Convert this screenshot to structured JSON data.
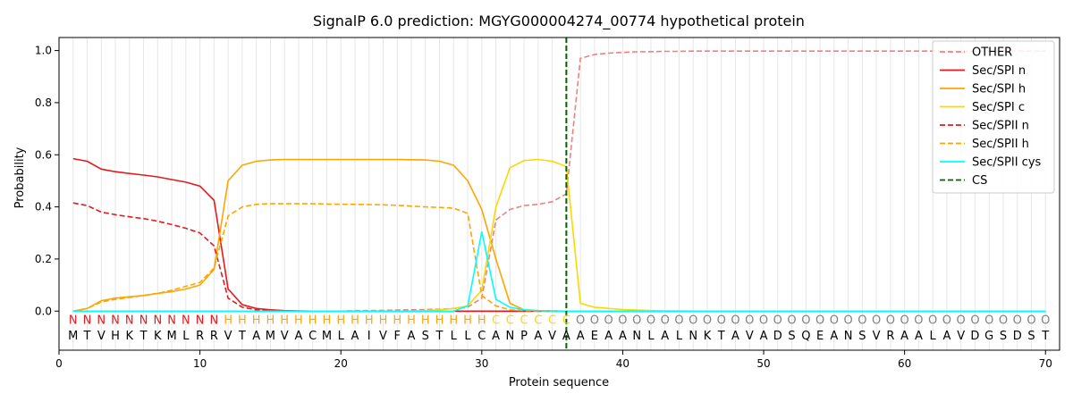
{
  "chart_data": {
    "type": "line",
    "title": "SignalP 6.0 prediction: MGYG000004274_00774 hypothetical protein",
    "xlabel": "Protein sequence",
    "ylabel": "Probability",
    "xlim": [
      0,
      71
    ],
    "ylim": [
      -0.15,
      1.05
    ],
    "x_ticks": [
      0,
      10,
      20,
      30,
      40,
      50,
      60,
      70
    ],
    "y_ticks": [
      0.0,
      0.2,
      0.4,
      0.6,
      0.8,
      1.0
    ],
    "y_tick_labels": [
      "0.0",
      "0.2",
      "0.4",
      "0.6",
      "0.8",
      "1.0"
    ],
    "legend_position": "top-right",
    "sequence": [
      "M",
      "T",
      "V",
      "H",
      "K",
      "T",
      "K",
      "M",
      "L",
      "R",
      "R",
      "V",
      "T",
      "A",
      "M",
      "V",
      "A",
      "C",
      "M",
      "L",
      "A",
      "I",
      "V",
      "F",
      "A",
      "S",
      "T",
      "L",
      "L",
      "C",
      "A",
      "N",
      "P",
      "A",
      "V",
      "A",
      "A",
      "E",
      "A",
      "A",
      "N",
      "L",
      "A",
      "L",
      "N",
      "K",
      "T",
      "A",
      "V",
      "A",
      "D",
      "S",
      "Q",
      "E",
      "A",
      "N",
      "S",
      "V",
      "R",
      "A",
      "A",
      "L",
      "A",
      "V",
      "D",
      "G",
      "S",
      "D",
      "S",
      "T"
    ],
    "labels": [
      "N",
      "N",
      "N",
      "N",
      "N",
      "N",
      "N",
      "N",
      "N",
      "N",
      "N",
      "H",
      "H",
      "H",
      "H",
      "H",
      "H",
      "H",
      "H",
      "H",
      "H",
      "H",
      "H",
      "H",
      "H",
      "H",
      "H",
      "H",
      "H",
      "H",
      "C",
      "C",
      "C",
      "C",
      "C",
      "C",
      "O",
      "O",
      "O",
      "O",
      "O",
      "O",
      "O",
      "O",
      "O",
      "O",
      "O",
      "O",
      "O",
      "O",
      "O",
      "O",
      "O",
      "O",
      "O",
      "O",
      "O",
      "O",
      "O",
      "O",
      "O",
      "O",
      "O",
      "O",
      "O",
      "O",
      "O",
      "O",
      "O",
      "O"
    ],
    "label_colors": {
      "N": "#e41a1c",
      "H": "#ffa500",
      "C": "#ffd700",
      "O": "#808080"
    },
    "cleavage_site": 36,
    "series": [
      {
        "name": "OTHER",
        "color": "#f08080",
        "dash": "dashed",
        "values": [
          0,
          0,
          0,
          0,
          0,
          0,
          0,
          0,
          0,
          0,
          0,
          0,
          0,
          0,
          0,
          0,
          0,
          0,
          0,
          0,
          0.002,
          0.002,
          0.003,
          0.004,
          0.005,
          0.006,
          0.007,
          0.01,
          0.015,
          0.05,
          0.35,
          0.39,
          0.405,
          0.41,
          0.42,
          0.45,
          0.97,
          0.985,
          0.99,
          0.993,
          0.995,
          0.996,
          0.997,
          0.997,
          0.998,
          0.998,
          0.998,
          0.998,
          0.998,
          0.998,
          0.998,
          0.998,
          0.998,
          0.998,
          0.998,
          0.998,
          0.998,
          0.998,
          0.998,
          0.998,
          0.998,
          0.998,
          0.998,
          0.998,
          0.998,
          0.998,
          0.998,
          0.998,
          0.998,
          0.998
        ]
      },
      {
        "name": "Sec/SPI n",
        "color": "#e41a1c",
        "dash": "solid",
        "values": [
          0.585,
          0.575,
          0.545,
          0.535,
          0.528,
          0.522,
          0.515,
          0.505,
          0.495,
          0.48,
          0.425,
          0.085,
          0.025,
          0.01,
          0.005,
          0.002,
          0.001,
          0,
          0,
          0,
          0,
          0,
          0,
          0,
          0,
          0,
          0,
          0,
          0,
          0,
          0,
          0,
          0,
          0,
          0,
          0,
          0,
          0,
          0,
          0,
          0,
          0,
          0,
          0,
          0,
          0,
          0,
          0,
          0,
          0,
          0,
          0,
          0,
          0,
          0,
          0,
          0,
          0,
          0,
          0,
          0,
          0,
          0,
          0,
          0,
          0,
          0,
          0,
          0,
          0
        ]
      },
      {
        "name": "Sec/SPI h",
        "color": "#ffa500",
        "dash": "solid",
        "values": [
          0,
          0.01,
          0.04,
          0.05,
          0.055,
          0.06,
          0.068,
          0.075,
          0.085,
          0.1,
          0.16,
          0.5,
          0.56,
          0.575,
          0.58,
          0.582,
          0.582,
          0.582,
          0.582,
          0.582,
          0.582,
          0.582,
          0.582,
          0.582,
          0.581,
          0.58,
          0.575,
          0.56,
          0.5,
          0.39,
          0.2,
          0.03,
          0.005,
          0.002,
          0.001,
          0,
          0,
          0,
          0,
          0,
          0,
          0,
          0,
          0,
          0,
          0,
          0,
          0,
          0,
          0,
          0,
          0,
          0,
          0,
          0,
          0,
          0,
          0,
          0,
          0,
          0,
          0,
          0,
          0,
          0,
          0,
          0,
          0,
          0,
          0
        ]
      },
      {
        "name": "Sec/SPI c",
        "color": "#ffd700",
        "dash": "solid",
        "values": [
          0,
          0,
          0,
          0,
          0,
          0,
          0,
          0,
          0,
          0,
          0,
          0,
          0,
          0,
          0,
          0,
          0,
          0,
          0,
          0,
          0,
          0,
          0,
          0,
          0,
          0.002,
          0.005,
          0.01,
          0.02,
          0.08,
          0.4,
          0.55,
          0.578,
          0.582,
          0.575,
          0.555,
          0.03,
          0.015,
          0.01,
          0.006,
          0.004,
          0.002,
          0.001,
          0.001,
          0,
          0,
          0,
          0,
          0,
          0,
          0,
          0,
          0,
          0,
          0,
          0,
          0,
          0,
          0,
          0,
          0,
          0,
          0,
          0,
          0,
          0,
          0,
          0,
          0,
          0
        ]
      },
      {
        "name": "Sec/SPII n",
        "color": "#e41a1c",
        "dash": "dashed",
        "values": [
          0.415,
          0.405,
          0.38,
          0.37,
          0.362,
          0.355,
          0.345,
          0.332,
          0.318,
          0.3,
          0.25,
          0.05,
          0.015,
          0.005,
          0.002,
          0.001,
          0,
          0,
          0,
          0,
          0,
          0,
          0,
          0,
          0,
          0,
          0,
          0,
          0,
          0,
          0,
          0,
          0,
          0,
          0,
          0,
          0,
          0,
          0,
          0,
          0,
          0,
          0,
          0,
          0,
          0,
          0,
          0,
          0,
          0,
          0,
          0,
          0,
          0,
          0,
          0,
          0,
          0,
          0,
          0,
          0,
          0,
          0,
          0,
          0,
          0,
          0,
          0,
          0,
          0
        ]
      },
      {
        "name": "Sec/SPII h",
        "color": "#ffa500",
        "dash": "dashed",
        "values": [
          0,
          0.01,
          0.035,
          0.045,
          0.052,
          0.06,
          0.068,
          0.08,
          0.095,
          0.11,
          0.165,
          0.365,
          0.4,
          0.41,
          0.412,
          0.412,
          0.412,
          0.412,
          0.411,
          0.41,
          0.41,
          0.409,
          0.408,
          0.406,
          0.403,
          0.4,
          0.398,
          0.395,
          0.375,
          0.06,
          0.02,
          0.005,
          0.002,
          0.001,
          0,
          0,
          0,
          0,
          0,
          0,
          0,
          0,
          0,
          0,
          0,
          0,
          0,
          0,
          0,
          0,
          0,
          0,
          0,
          0,
          0,
          0,
          0,
          0,
          0,
          0,
          0,
          0,
          0,
          0,
          0,
          0,
          0,
          0,
          0,
          0
        ]
      },
      {
        "name": "Sec/SPII cys",
        "color": "#00ffff",
        "dash": "solid",
        "values": [
          0,
          0,
          0,
          0,
          0,
          0,
          0,
          0,
          0,
          0,
          0,
          0,
          0,
          0,
          0,
          0,
          0,
          0,
          0,
          0,
          0,
          0,
          0,
          0,
          0,
          0,
          0,
          0,
          0.02,
          0.305,
          0.045,
          0.015,
          0.005,
          0.002,
          0.001,
          0,
          0,
          0,
          0,
          0,
          0,
          0,
          0,
          0,
          0,
          0,
          0,
          0,
          0,
          0,
          0,
          0,
          0,
          0,
          0,
          0,
          0,
          0,
          0,
          0,
          0,
          0,
          0,
          0,
          0,
          0,
          0,
          0,
          0,
          0
        ]
      },
      {
        "name": "CS",
        "color": "#006400",
        "dash": "dashed",
        "type": "vline",
        "x": 36
      }
    ]
  }
}
